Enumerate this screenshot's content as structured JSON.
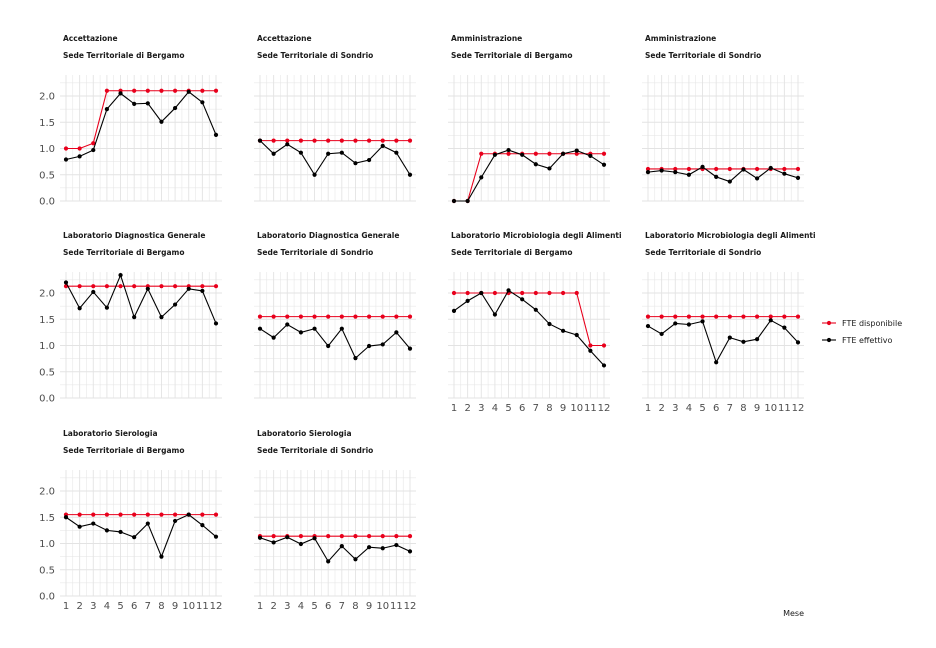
{
  "colors": {
    "disponibile": "#e8001c",
    "effettivo": "#000000",
    "grid": "#e3e3e3"
  },
  "chart_data": {
    "type": "line",
    "xlabel": "Mese",
    "ylabel": "",
    "x": [
      1,
      2,
      3,
      4,
      5,
      6,
      7,
      8,
      9,
      10,
      11,
      12
    ],
    "ylim": [
      0,
      2.4
    ],
    "yticks": [
      0.0,
      0.5,
      1.0,
      1.5,
      2.0
    ],
    "ytick_labels": [
      "0.0",
      "0.5",
      "1.0",
      "1.5",
      "2.0"
    ],
    "xtick_labels": [
      "1",
      "2",
      "3",
      "4",
      "5",
      "6",
      "7",
      "8",
      "9",
      "10",
      "11",
      "12"
    ],
    "grid": true,
    "legend": {
      "placement": "right",
      "entries": [
        {
          "name": "FTE disponibile",
          "color": "#e8001c"
        },
        {
          "name": "FTE effettivo",
          "color": "#000000"
        }
      ]
    },
    "panels": [
      {
        "title1": "Accettazione",
        "title2": "Sede Territoriale di Bergamo",
        "series": [
          {
            "name": "FTE disponibile",
            "values": [
              1.0,
              1.0,
              1.1,
              2.1,
              2.1,
              2.1,
              2.1,
              2.1,
              2.1,
              2.1,
              2.1,
              2.1
            ]
          },
          {
            "name": "FTE effettivo",
            "values": [
              0.79,
              0.85,
              0.97,
              1.75,
              2.05,
              1.85,
              1.86,
              1.51,
              1.77,
              2.08,
              1.88,
              1.26
            ]
          }
        ]
      },
      {
        "title1": "Accettazione",
        "title2": "Sede Territoriale di Sondrio",
        "series": [
          {
            "name": "FTE disponibile",
            "values": [
              1.15,
              1.15,
              1.15,
              1.15,
              1.15,
              1.15,
              1.15,
              1.15,
              1.15,
              1.15,
              1.15,
              1.15
            ]
          },
          {
            "name": "FTE effettivo",
            "values": [
              1.15,
              0.9,
              1.08,
              0.92,
              0.5,
              0.9,
              0.92,
              0.72,
              0.78,
              1.05,
              0.92,
              0.5
            ]
          }
        ]
      },
      {
        "title1": "Amministrazione",
        "title2": "Sede Territoriale di Bergamo",
        "series": [
          {
            "name": "FTE disponibile",
            "values": [
              0.0,
              0.0,
              0.9,
              0.9,
              0.9,
              0.9,
              0.9,
              0.9,
              0.9,
              0.9,
              0.9,
              0.9
            ]
          },
          {
            "name": "FTE effettivo",
            "values": [
              0.0,
              0.0,
              0.45,
              0.88,
              0.97,
              0.88,
              0.7,
              0.62,
              0.9,
              0.96,
              0.86,
              0.69
            ]
          }
        ]
      },
      {
        "title1": "Amministrazione",
        "title2": "Sede Territoriale di Sondrio",
        "series": [
          {
            "name": "FTE disponibile",
            "values": [
              0.61,
              0.61,
              0.61,
              0.61,
              0.61,
              0.61,
              0.61,
              0.61,
              0.61,
              0.61,
              0.61,
              0.61
            ]
          },
          {
            "name": "FTE effettivo",
            "values": [
              0.55,
              0.58,
              0.55,
              0.5,
              0.65,
              0.46,
              0.37,
              0.6,
              0.43,
              0.63,
              0.52,
              0.44
            ]
          }
        ]
      },
      {
        "title1": "Laboratorio Diagnostica Generale",
        "title2": "Sede Territoriale di Bergamo",
        "series": [
          {
            "name": "FTE disponibile",
            "values": [
              2.13,
              2.13,
              2.13,
              2.13,
              2.13,
              2.13,
              2.13,
              2.13,
              2.13,
              2.13,
              2.13,
              2.13
            ]
          },
          {
            "name": "FTE effettivo",
            "values": [
              2.2,
              1.71,
              2.02,
              1.72,
              2.34,
              1.54,
              2.08,
              1.54,
              1.78,
              2.08,
              2.04,
              1.42
            ]
          }
        ]
      },
      {
        "title1": "Laboratorio Diagnostica Generale",
        "title2": "Sede Territoriale di Sondrio",
        "series": [
          {
            "name": "FTE disponibile",
            "values": [
              1.55,
              1.55,
              1.55,
              1.55,
              1.55,
              1.55,
              1.55,
              1.55,
              1.55,
              1.55,
              1.55,
              1.55
            ]
          },
          {
            "name": "FTE effettivo",
            "values": [
              1.32,
              1.15,
              1.4,
              1.25,
              1.32,
              0.99,
              1.32,
              0.76,
              0.99,
              1.02,
              1.25,
              0.94
            ]
          }
        ]
      },
      {
        "title1": "Laboratorio Microbiologia degli Alimenti",
        "title2": "Sede Territoriale di Bergamo",
        "series": [
          {
            "name": "FTE disponibile",
            "values": [
              2.0,
              2.0,
              2.0,
              2.0,
              2.0,
              2.0,
              2.0,
              2.0,
              2.0,
              2.0,
              1.0,
              1.0
            ]
          },
          {
            "name": "FTE effettivo",
            "values": [
              1.66,
              1.85,
              2.0,
              1.59,
              2.05,
              1.88,
              1.68,
              1.41,
              1.28,
              1.2,
              0.9,
              0.62
            ]
          }
        ]
      },
      {
        "title1": "Laboratorio Microbiologia degli Alimenti",
        "title2": "Sede Territoriale di Sondrio",
        "series": [
          {
            "name": "FTE disponibile",
            "values": [
              1.55,
              1.55,
              1.55,
              1.55,
              1.55,
              1.55,
              1.55,
              1.55,
              1.55,
              1.55,
              1.55,
              1.55
            ]
          },
          {
            "name": "FTE effettivo",
            "values": [
              1.37,
              1.22,
              1.42,
              1.4,
              1.46,
              0.68,
              1.15,
              1.07,
              1.12,
              1.48,
              1.34,
              1.06
            ]
          }
        ]
      },
      {
        "title1": "Laboratorio Sierologia",
        "title2": "Sede Territoriale di Bergamo",
        "series": [
          {
            "name": "FTE disponibile",
            "values": [
              1.55,
              1.55,
              1.55,
              1.55,
              1.55,
              1.55,
              1.55,
              1.55,
              1.55,
              1.55,
              1.55,
              1.55
            ]
          },
          {
            "name": "FTE effettivo",
            "values": [
              1.5,
              1.32,
              1.38,
              1.25,
              1.22,
              1.12,
              1.38,
              0.75,
              1.43,
              1.55,
              1.35,
              1.13
            ]
          }
        ]
      },
      {
        "title1": "Laboratorio Sierologia",
        "title2": "Sede Territoriale di Sondrio",
        "series": [
          {
            "name": "FTE disponibile",
            "values": [
              1.14,
              1.14,
              1.14,
              1.14,
              1.14,
              1.14,
              1.14,
              1.14,
              1.14,
              1.14,
              1.14,
              1.14
            ]
          },
          {
            "name": "FTE effettivo",
            "values": [
              1.11,
              1.02,
              1.12,
              0.99,
              1.1,
              0.66,
              0.95,
              0.7,
              0.93,
              0.91,
              0.97,
              0.85
            ]
          }
        ]
      }
    ]
  }
}
